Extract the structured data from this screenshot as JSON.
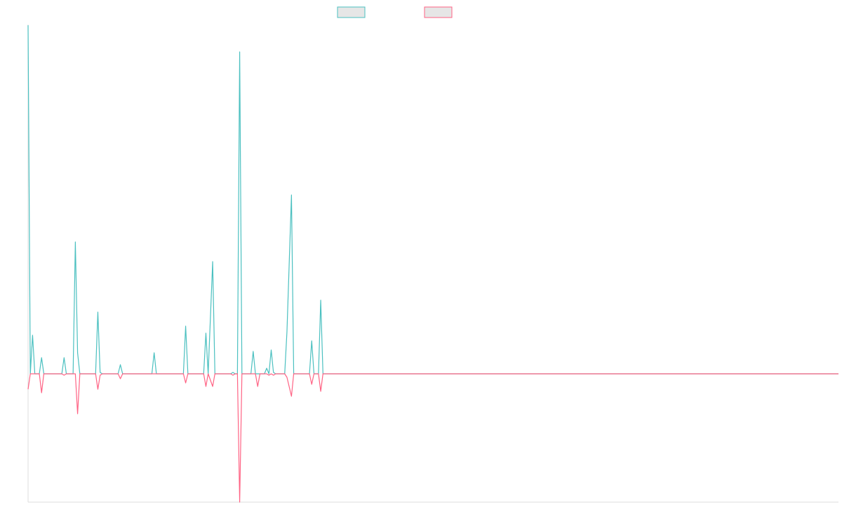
{
  "chart_data": {
    "type": "line",
    "x": [
      0,
      1,
      2,
      3,
      5,
      6,
      7,
      15,
      16,
      17,
      20,
      21,
      22,
      23,
      30,
      31,
      32,
      33,
      40,
      41,
      42,
      55,
      56,
      57,
      69,
      70,
      71,
      78,
      79,
      80,
      82,
      83,
      90,
      91,
      92,
      93,
      94,
      95,
      99,
      100,
      101,
      102,
      103,
      105,
      106,
      107,
      108,
      109,
      110,
      114,
      115,
      117,
      118,
      125,
      126,
      127,
      129,
      130,
      131,
      360
    ],
    "series": [
      {
        "color": "#4bc0c0",
        "values": [
          497,
          0,
          55,
          0,
          0,
          23,
          0,
          0,
          23,
          0,
          0,
          188,
          30,
          0,
          0,
          88,
          2,
          0,
          0,
          13,
          0,
          0,
          30,
          0,
          0,
          68,
          0,
          0,
          58,
          0,
          160,
          0,
          0,
          2,
          0,
          0,
          459,
          0,
          0,
          32,
          0,
          0,
          0,
          0,
          8,
          0,
          34,
          2,
          0,
          0,
          60,
          255,
          0,
          0,
          47,
          0,
          0,
          105,
          0,
          0
        ]
      },
      {
        "color": "#ff6384",
        "values": [
          -22,
          0,
          0,
          0,
          0,
          -27,
          0,
          0,
          -2,
          0,
          0,
          0,
          -57,
          0,
          0,
          -22,
          -2,
          0,
          0,
          -7,
          0,
          0,
          0,
          0,
          0,
          -13,
          0,
          0,
          -18,
          0,
          -18,
          0,
          0,
          -2,
          0,
          0,
          -183,
          0,
          0,
          0,
          0,
          -18,
          0,
          0,
          0,
          -2,
          0,
          -2,
          0,
          0,
          -5,
          -32,
          0,
          0,
          -15,
          0,
          0,
          -25,
          0,
          0
        ]
      }
    ],
    "xlim": [
      0,
      360
    ],
    "ylim": [
      -183,
      497
    ],
    "grid": false
  }
}
